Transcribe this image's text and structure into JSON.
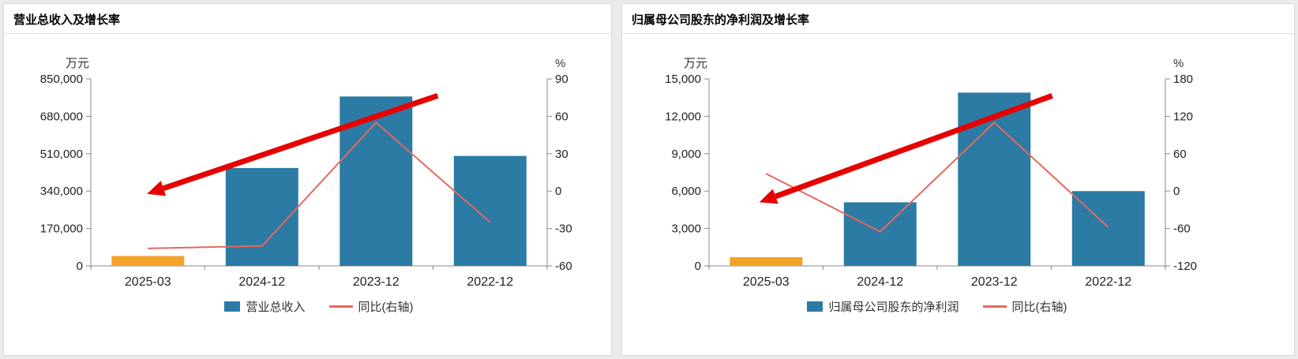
{
  "page": {
    "background": "#ebebeb"
  },
  "colors": {
    "bar_blue": "#2b7ba5",
    "bar_orange": "#f5a228",
    "line_red": "#e4695e",
    "arrow_red": "#e60000",
    "axis_gray": "#8a8a8a"
  },
  "chart_data": [
    {
      "type": "bar+line",
      "title": "营业总收入及增长率",
      "unit_left": "万元",
      "unit_right": "%",
      "categories": [
        "2025-03",
        "2024-12",
        "2023-12",
        "2022-12"
      ],
      "bar_series": {
        "name": "营业总收入",
        "values": [
          45000,
          445000,
          770000,
          500000
        ],
        "colors": [
          "#f5a228",
          "#2b7ba5",
          "#2b7ba5",
          "#2b7ba5"
        ]
      },
      "line_series": {
        "name": "同比(右轴)",
        "values": [
          -46,
          -44,
          55,
          -25
        ],
        "color": "#e4695e"
      },
      "left_axis": {
        "min": 0,
        "max": 850000,
        "tick_labels": [
          "850,000",
          "680,000",
          "510,000",
          "340,000",
          "170,000",
          "0"
        ]
      },
      "right_axis": {
        "min": -60,
        "max": 90,
        "tick_labels": [
          "90",
          "60",
          "30",
          "0",
          "-30",
          "-60"
        ]
      },
      "legend_position": "bottom-center",
      "grid": false,
      "annotation_arrow": {
        "color": "#e60000",
        "from": {
          "x": 0.76,
          "y": 0.09
        },
        "to": {
          "x": 0.123,
          "y": 0.615
        }
      }
    },
    {
      "type": "bar+line",
      "title": "归属母公司股东的净利润及增长率",
      "unit_left": "万元",
      "unit_right": "%",
      "categories": [
        "2025-03",
        "2024-12",
        "2023-12",
        "2022-12"
      ],
      "bar_series": {
        "name": "归属母公司股东的净利润",
        "values": [
          700,
          5100,
          13900,
          6000
        ],
        "colors": [
          "#f5a228",
          "#2b7ba5",
          "#2b7ba5",
          "#2b7ba5"
        ]
      },
      "line_series": {
        "name": "同比(右轴)",
        "values": [
          28,
          -65,
          110,
          -58
        ],
        "color": "#e4695e"
      },
      "left_axis": {
        "min": 0,
        "max": 15000,
        "tick_labels": [
          "15,000",
          "12,000",
          "9,000",
          "6,000",
          "3,000",
          "0"
        ]
      },
      "right_axis": {
        "min": -120,
        "max": 180,
        "tick_labels": [
          "180",
          "120",
          "60",
          "0",
          "-60",
          "-120"
        ]
      },
      "legend_position": "bottom-center",
      "grid": false,
      "annotation_arrow": {
        "color": "#e60000",
        "from": {
          "x": 0.752,
          "y": 0.09
        },
        "to": {
          "x": 0.11,
          "y": 0.66
        }
      }
    }
  ]
}
